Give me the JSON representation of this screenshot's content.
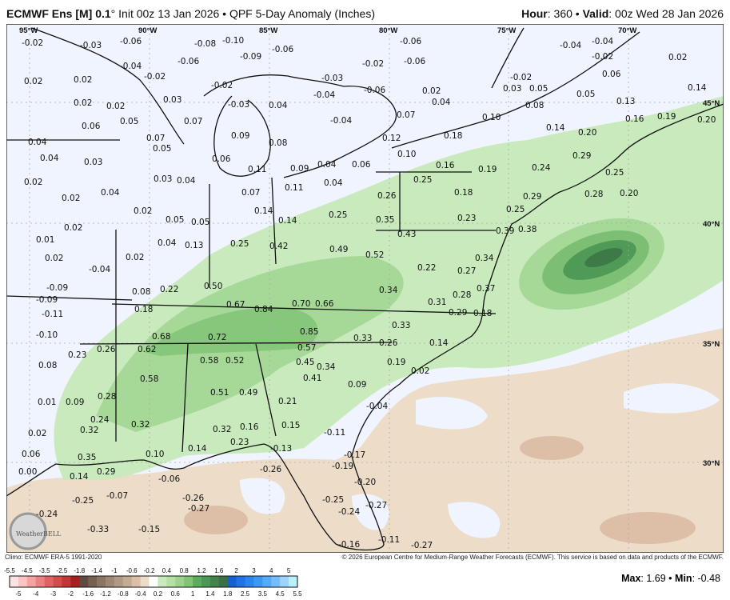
{
  "header": {
    "model": "ECMWF Ens [M] 0.1",
    "degree": "°",
    "init": " Init 00z 13 Jan 2026 • QPF 5-Day Anomaly (Inches)",
    "hour_label": "Hour",
    "hour_value": ": 360 • ",
    "valid_label": "Valid",
    "valid_value": ": 00z Wed 28 Jan 2026"
  },
  "map": {
    "lon_labels": [
      "95°W",
      "90°W",
      "85°W",
      "80°W",
      "75°W",
      "70°W"
    ],
    "lat_labels": [
      "45°N",
      "40°N",
      "35°N",
      "30°N"
    ],
    "logo_text": "WeatherBELL",
    "colors": {
      "background": "#f0f4fe",
      "light_green": "#c8eabc",
      "mid_green": "#a6d898",
      "dark_green": "#7cbf74",
      "darker_green": "#4f9a57",
      "darkest_green": "#3e7a48",
      "tan": "#ecdcc8",
      "brown": "#dcbfa6",
      "border": "#111111"
    },
    "values": [
      "-0.02",
      "-0.03",
      "-0.06",
      "-0.04",
      "-0.08",
      "-0.06",
      "-0.10",
      "-0.09",
      "-0.06",
      "-0.02",
      "0.02",
      "0.02",
      "0.02",
      "0.02",
      "0.03",
      "-0.02",
      "-0.03",
      "0.04",
      "0.06",
      "0.05",
      "0.07",
      "0.07",
      "0.05",
      "0.09",
      "0.08",
      "0.06",
      "0.04",
      "0.04",
      "0.03",
      "0.02",
      "0.02",
      "0.04",
      "0.03",
      "0.04",
      "0.11",
      "0.09",
      "0.04",
      "0.11",
      "0.04",
      "0.06",
      "0.07",
      "-0.02",
      "-0.03",
      "-0.04",
      "-0.06",
      "-0.04",
      "0.12",
      "0.10",
      "0.07",
      "-0.06",
      "-0.06",
      "0.02",
      "0.04",
      "0.18",
      "0.16",
      "0.25",
      "0.18",
      "0.26",
      "-0.04",
      "-0.04",
      "-0.02",
      "0.02",
      "-0.02",
      "0.05",
      "0.03",
      "0.08",
      "0.05",
      "0.06",
      "0.13",
      "0.14",
      "0.20",
      "0.16",
      "0.19",
      "0.10",
      "0.14",
      "0.20",
      "0.29",
      "0.24",
      "0.19",
      "0.25",
      "0.28",
      "0.20",
      "0.29",
      "0.25",
      "0.02",
      "0.05",
      "0.05",
      "0.02",
      "0.01",
      "0.02",
      "0.04",
      "0.13",
      "0.02",
      "-0.04",
      "0.08",
      "0.22",
      "0.25",
      "0.50",
      "-0.09",
      "-0.09",
      "0.18",
      "0.67",
      "-0.11",
      "-0.10",
      "0.68",
      "0.62",
      "0.72",
      "0.26",
      "0.23",
      "0.58",
      "0.52",
      "0.08",
      "0.14",
      "0.14",
      "0.25",
      "0.35",
      "0.23",
      "0.43",
      "0.39",
      "0.38",
      "0.42",
      "0.49",
      "0.52",
      "0.22",
      "0.34",
      "0.27",
      "0.37",
      "0.34",
      "0.28",
      "0.31",
      "0.70",
      "0.66",
      "0.84",
      "0.29",
      "0.18",
      "0.33",
      "0.85",
      "0.57",
      "0.33",
      "0.26",
      "0.14",
      "0.19",
      "0.45",
      "0.41",
      "0.34",
      "0.02",
      "0.58",
      "0.28",
      "0.01",
      "0.09",
      "0.51",
      "0.49",
      "0.32",
      "0.32",
      "0.24",
      "0.02",
      "0.32",
      "0.23",
      "0.16",
      "0.06",
      "0.35",
      "0.29",
      "0.14",
      "0.10",
      "0.00",
      "0.14",
      "-0.06",
      "-0.25",
      "-0.07",
      "-0.26",
      "-0.27",
      "-0.24",
      "-0.33",
      "-0.15",
      "0.21",
      "0.09",
      "-0.04",
      "0.15",
      "-0.11",
      "-0.13",
      "-0.17",
      "-0.19",
      "-0.26",
      "-0.20",
      "-0.25",
      "-0.27",
      "-0.24",
      "-0.16",
      "-0.11",
      "-0.27"
    ]
  },
  "footer": {
    "climo": "Climo: ECMWF ERA-5 1991-2020",
    "copyright": "© 2026 European Centre for Medium-Range Weather Forecasts (ECMWF). This service is based on data and products of the ECMWF.",
    "max_label": "Max",
    "max_value": ": 1.69 • ",
    "min_label": "Min",
    "min_value": ": -0.48"
  },
  "colorbar": {
    "labels": [
      "-5.5",
      "-5",
      "-4.5",
      "-4",
      "-3.5",
      "-3",
      "-2.5",
      "-2",
      "-1.8",
      "-1.6",
      "-1.4",
      "-1.2",
      "-1",
      "-0.8",
      "-0.6",
      "-0.4",
      "-0.2",
      "0.2",
      "0.4",
      "0.6",
      "0.8",
      "1",
      "1.2",
      "1.4",
      "1.6",
      "1.8",
      "2",
      "2.5",
      "3",
      "3.5",
      "4",
      "4.5",
      "5",
      "5.5"
    ],
    "colors": [
      "#ffe3e3",
      "#fcc3c3",
      "#f4a2a2",
      "#ea8282",
      "#e06262",
      "#d54b4b",
      "#c43636",
      "#a81e1e",
      "#5e4a42",
      "#74604f",
      "#8a7462",
      "#9e8875",
      "#b09a87",
      "#c4ab94",
      "#dcbfa6",
      "#ecdcc8",
      "#ffffff",
      "#c8eabc",
      "#b4e0a4",
      "#9cd48c",
      "#80c474",
      "#5cac5c",
      "#4c9854",
      "#44844a",
      "#3c7044",
      "#1460d0",
      "#2070e8",
      "#2c84f0",
      "#3c98f4",
      "#54acf8",
      "#74bcfc",
      "#9cd4fc",
      "#b8f0fc"
    ]
  }
}
